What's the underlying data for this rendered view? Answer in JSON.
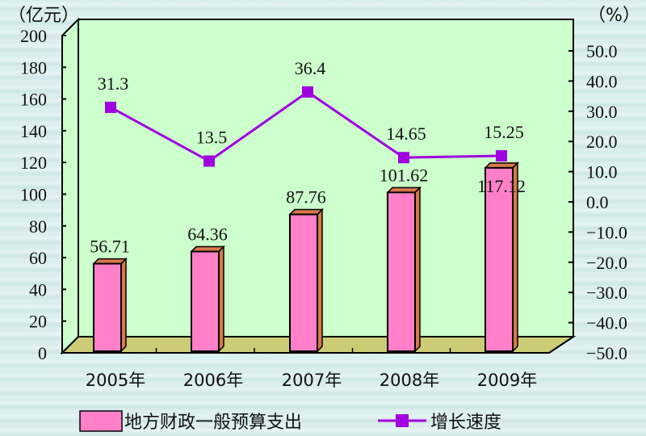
{
  "chart_data": {
    "type": "bar+line",
    "title": "",
    "categories": [
      "2005年",
      "2006年",
      "2007年",
      "2008年",
      "2009年"
    ],
    "series": [
      {
        "name": "地方财政一般预算支出",
        "type": "bar",
        "axis": "left",
        "values": [
          56.71,
          64.36,
          87.76,
          101.62,
          117.12
        ],
        "labels": [
          "56.71",
          "64.36",
          "87.76",
          "101.62",
          "117.12"
        ],
        "color": "#ff80c8",
        "side_color": "#d8784a"
      },
      {
        "name": "增长速度",
        "type": "line",
        "axis": "right",
        "values": [
          31.3,
          13.5,
          36.4,
          14.65,
          15.25
        ],
        "labels": [
          "31.3",
          "13.5",
          "36.4",
          "14.65",
          "15.25"
        ],
        "color": "#a000e0"
      }
    ],
    "left_axis": {
      "unit_label": "（亿元）",
      "ylim": [
        0,
        200
      ],
      "ticks": [
        "0",
        "20",
        "40",
        "60",
        "80",
        "100",
        "120",
        "140",
        "160",
        "180",
        "200"
      ]
    },
    "right_axis": {
      "unit_label": "（%）",
      "ylim": [
        -50,
        50
      ],
      "ticks": [
        "-50.0",
        "-40.0",
        "-30.0",
        "-20.0",
        "-10.0",
        "0.0",
        "10.0",
        "20.0",
        "30.0",
        "40.0",
        "50.0"
      ]
    },
    "legend": {
      "position": "bottom",
      "entries": [
        "地方财政一般预算支出",
        "增长速度"
      ]
    },
    "grid": false,
    "style": "3d",
    "colors": {
      "wall": "#ccffcc",
      "floor": "#cccc77",
      "bar_front": "#ff80c8",
      "bar_side": "#d8784a",
      "line": "#a000e0"
    }
  }
}
